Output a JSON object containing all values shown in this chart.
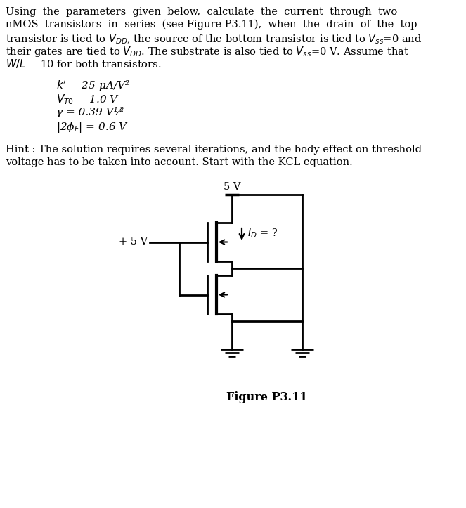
{
  "background_color": "#ffffff",
  "text_color": "#000000",
  "fig_width": 6.63,
  "fig_height": 7.23,
  "dpi": 100,
  "figure_label": "Figure P3.11",
  "para_line1": "Using  the  parameters  given  below,  calculate  the  current  through  two",
  "para_line2": "nMOS  transistors  in  series  (see Figure P3.11),  when  the  drain  of  the  top",
  "para_line3": "transistor is tied to $V_{DD}$, the source of the bottom transistor is tied to $V_{ss}$=0 and",
  "para_line4": "their gates are tied to $V_{DD}$. The substrate is also tied to $V_{ss}$=0 V. Assume that",
  "para_line5": "$W/L$ = 10 for both transistors.",
  "param1": "$k'$ = 25 μA/V²",
  "param2": "$V_{T0}$ = 1.0 V",
  "param3": "γ = 0.39 V¹⁄²",
  "param4": "|2ϕ$_F$| = 0.6 V",
  "hint1": "Hint : The solution requires several iterations, and the body effect on threshold",
  "hint2": "voltage has to be taken into account. Start with the KCL equation.",
  "vdd_label": "5 V",
  "gate_label": "+ 5 V",
  "id_label": "$I_D$ = ?"
}
